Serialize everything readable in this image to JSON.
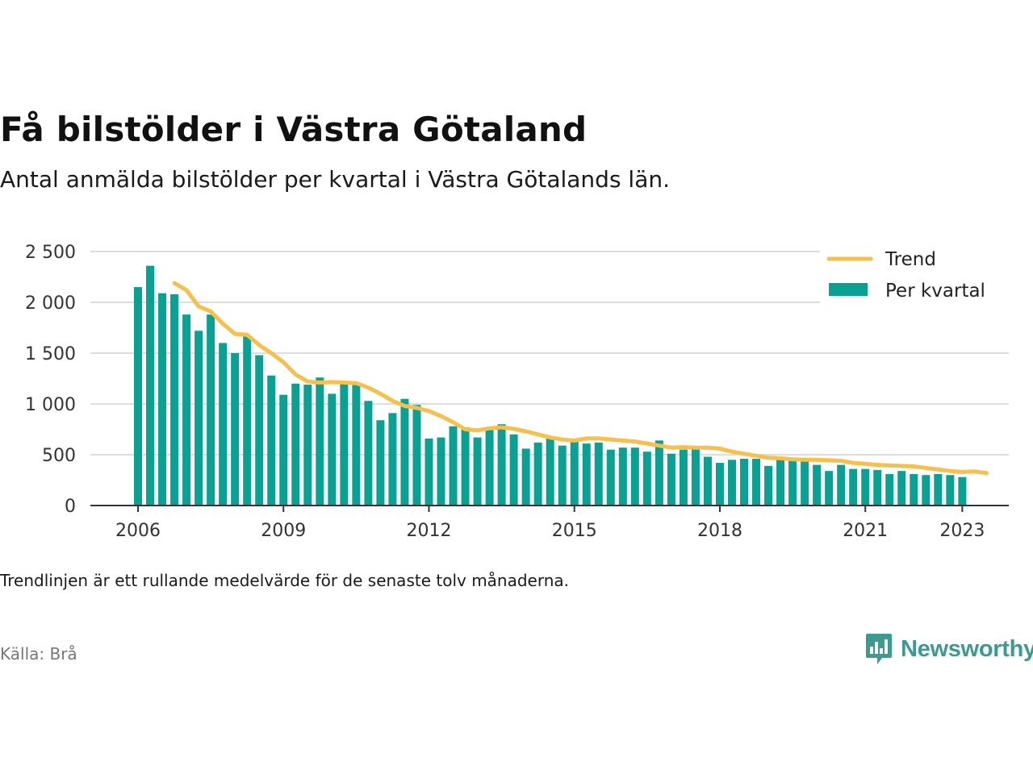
{
  "title": "Få bilstölder i Västra Götaland",
  "subtitle": "Antal anmälda bilstölder per kvartal i Västra Götalands län.",
  "note": "Trendlinjen är ett rullande medelvärde för de senaste tolv månaderna.",
  "source": "Källa: Brå",
  "brand": {
    "name": "Newsworthy",
    "icon": "newsworthy-logo-icon",
    "color": "#3a9b8e"
  },
  "colors": {
    "bars": "#0aa195",
    "trend": "#f7c04a",
    "grid": "#dddddd",
    "axis": "#333333"
  },
  "chart_data": {
    "type": "bar",
    "title": "Få bilstölder i Västra Götaland",
    "subtitle": "Antal anmälda bilstölder per kvartal i Västra Götalands län.",
    "x_start_year": 2006,
    "x_tick_labels": [
      "2006",
      "2009",
      "2012",
      "2015",
      "2018",
      "2021",
      "2023"
    ],
    "y_tick_labels": [
      "0",
      "500",
      "1 000",
      "1 500",
      "2 000",
      "2 500"
    ],
    "ylim": [
      0,
      2500
    ],
    "grid": true,
    "legend_position": "top-right",
    "series": [
      {
        "name": "Per kvartal",
        "type": "bar",
        "values": [
          2150,
          2360,
          2090,
          2080,
          1880,
          1720,
          1880,
          1600,
          1500,
          1670,
          1480,
          1280,
          1090,
          1200,
          1190,
          1260,
          1100,
          1210,
          1200,
          1030,
          840,
          910,
          1050,
          990,
          660,
          670,
          780,
          770,
          670,
          760,
          800,
          700,
          560,
          620,
          670,
          590,
          650,
          610,
          620,
          550,
          570,
          570,
          530,
          640,
          510,
          550,
          560,
          480,
          420,
          450,
          460,
          460,
          390,
          450,
          460,
          440,
          400,
          340,
          400,
          360,
          360,
          350,
          310,
          340,
          310,
          300,
          310,
          300,
          280
        ]
      },
      {
        "name": "Trend",
        "type": "line",
        "start_index": 3,
        "values": [
          2190,
          2120,
          1960,
          1910,
          1790,
          1690,
          1680,
          1580,
          1500,
          1410,
          1290,
          1220,
          1210,
          1215,
          1210,
          1205,
          1160,
          1100,
          1030,
          980,
          960,
          930,
          880,
          820,
          750,
          740,
          760,
          770,
          755,
          730,
          700,
          670,
          650,
          640,
          660,
          660,
          650,
          640,
          630,
          610,
          590,
          570,
          575,
          570,
          570,
          560,
          530,
          510,
          490,
          470,
          465,
          455,
          450,
          450,
          445,
          440,
          420,
          410,
          400,
          395,
          390,
          385,
          370,
          355,
          340,
          330,
          335,
          320
        ]
      }
    ]
  }
}
